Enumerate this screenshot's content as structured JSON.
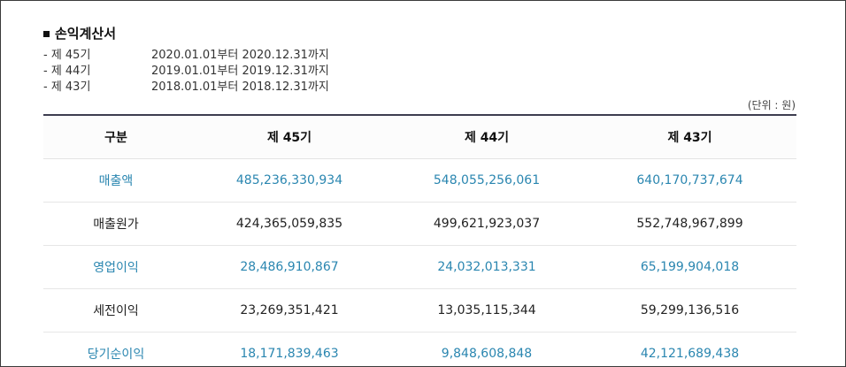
{
  "title": "손익계산서",
  "periods": [
    {
      "label": "- 제 45기",
      "range": "2020.01.01부터 2020.12.31까지"
    },
    {
      "label": "- 제 44기",
      "range": "2019.01.01부터 2019.12.31까지"
    },
    {
      "label": "- 제 43기",
      "range": "2018.01.01부터 2018.12.31까지"
    }
  ],
  "unit": "(단위 : 원)",
  "table": {
    "headers": [
      "구분",
      "제 45기",
      "제 44기",
      "제 43기"
    ],
    "rows": [
      {
        "item": "매출액",
        "v45": "485,236,330,934",
        "v44": "548,055,256,061",
        "v43": "640,170,737,674"
      },
      {
        "item": "매출원가",
        "v45": "424,365,059,835",
        "v44": "499,621,923,037",
        "v43": "552,748,967,899"
      },
      {
        "item": "영업이익",
        "v45": "28,486,910,867",
        "v44": "24,032,013,331",
        "v43": "65,199,904,018"
      },
      {
        "item": "세전이익",
        "v45": "23,269,351,421",
        "v44": "13,035,115,344",
        "v43": "59,299,136,516"
      },
      {
        "item": "당기순이익",
        "v45": "18,171,839,463",
        "v44": "9,848,608,848",
        "v43": "42,121,689,438"
      }
    ]
  },
  "colors": {
    "highlight": "#2a86b0",
    "header_border": "#3d3d4f"
  }
}
